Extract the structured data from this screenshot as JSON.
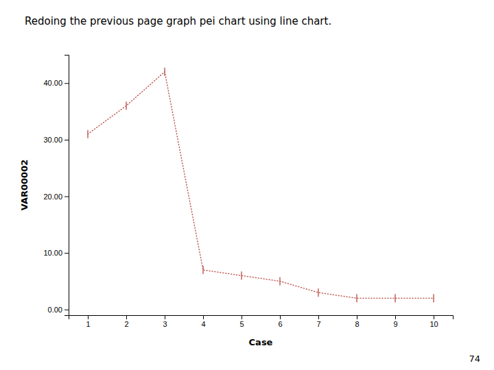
{
  "chart_data": {
    "type": "line",
    "title": "Redoing the previous page graph pei chart using line chart.",
    "xlabel": "Case",
    "ylabel": "VAR00002",
    "annotations": [
      "74"
    ],
    "x": [
      1,
      2,
      3,
      4,
      5,
      6,
      7,
      8,
      9,
      10
    ],
    "values": [
      31,
      36,
      42,
      7,
      6,
      5,
      3,
      2,
      2,
      2
    ],
    "color": "#c0605a",
    "line_style": "dotted",
    "marker": "vline",
    "xlim": [
      0.5,
      10.5
    ],
    "ylim": [
      -1,
      45
    ],
    "xticks": [
      1,
      2,
      3,
      4,
      5,
      6,
      7,
      8,
      9,
      10
    ],
    "yticks": [
      {
        "value": 0,
        "label": "0.00"
      },
      {
        "value": 10,
        "label": "10.00"
      },
      {
        "value": 20,
        "label": "20.00"
      },
      {
        "value": 30,
        "label": "30.00"
      },
      {
        "value": 40,
        "label": "40.00"
      }
    ],
    "grid": false
  }
}
